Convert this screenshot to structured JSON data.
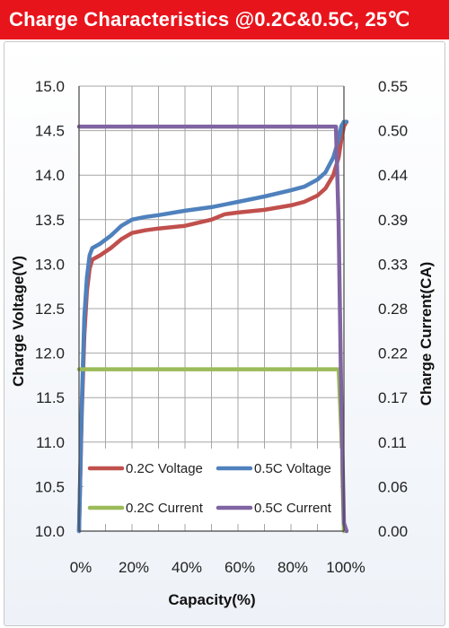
{
  "header": {
    "title": "Charge  Characteristics @0.2C&0.5C, 25℃"
  },
  "chart_data": {
    "type": "line",
    "xlabel": "Capacity(%)",
    "ylabel": "Charge Voltage(V)",
    "y2label": "Charge Current(CA)",
    "xlim": [
      0,
      100
    ],
    "ylim": [
      10.0,
      15.0
    ],
    "y2lim": [
      0.0,
      0.55
    ],
    "x_ticks": [
      "0%",
      "20%",
      "40%",
      "60%",
      "80%",
      "100%"
    ],
    "y_ticks": [
      "10.0",
      "10.5",
      "11.0",
      "11.5",
      "12.0",
      "12.5",
      "13.0",
      "13.5",
      "14.0",
      "14.5",
      "15.0"
    ],
    "y2_ticks": [
      "0.00",
      "0.06",
      "0.11",
      "0.17",
      "0.22",
      "0.28",
      "0.33",
      "0.39",
      "0.44",
      "0.50",
      "0.55"
    ],
    "grid": true,
    "legend_position": "bottom-inside",
    "series": [
      {
        "name": "0.2C Voltage",
        "axis": "left",
        "color": "#c0504d",
        "x": [
          0,
          1,
          2,
          3,
          4,
          5,
          8,
          12,
          16,
          20,
          25,
          30,
          40,
          50,
          55,
          60,
          70,
          80,
          85,
          90,
          93,
          96,
          98,
          99,
          100,
          101
        ],
        "y": [
          10.0,
          11.3,
          12.2,
          12.7,
          12.95,
          13.05,
          13.1,
          13.18,
          13.28,
          13.35,
          13.38,
          13.4,
          13.43,
          13.5,
          13.56,
          13.58,
          13.61,
          13.66,
          13.7,
          13.77,
          13.85,
          14.0,
          14.2,
          14.4,
          14.55,
          14.6
        ]
      },
      {
        "name": "0.5C Voltage",
        "axis": "left",
        "color": "#4f81bd",
        "x": [
          0,
          1,
          2,
          3,
          4,
          5,
          8,
          12,
          16,
          20,
          25,
          30,
          40,
          50,
          60,
          70,
          80,
          85,
          90,
          93,
          96,
          98,
          99,
          100,
          101
        ],
        "y": [
          10.0,
          11.4,
          12.4,
          12.85,
          13.1,
          13.18,
          13.23,
          13.32,
          13.43,
          13.5,
          13.53,
          13.55,
          13.6,
          13.64,
          13.7,
          13.76,
          13.83,
          13.87,
          13.95,
          14.03,
          14.2,
          14.4,
          14.55,
          14.6,
          14.6
        ]
      },
      {
        "name": "0.2C Current",
        "axis": "right",
        "color": "#9bbb59",
        "x": [
          0,
          97,
          98,
          99,
          100
        ],
        "y": [
          0.2,
          0.2,
          0.2,
          0.12,
          0.0
        ]
      },
      {
        "name": "0.5C Current",
        "axis": "right",
        "color": "#8064a2",
        "x": [
          0,
          96,
          97,
          98,
          99,
          100,
          101
        ],
        "y": [
          0.5,
          0.5,
          0.5,
          0.38,
          0.16,
          0.01,
          0.0
        ]
      }
    ]
  }
}
